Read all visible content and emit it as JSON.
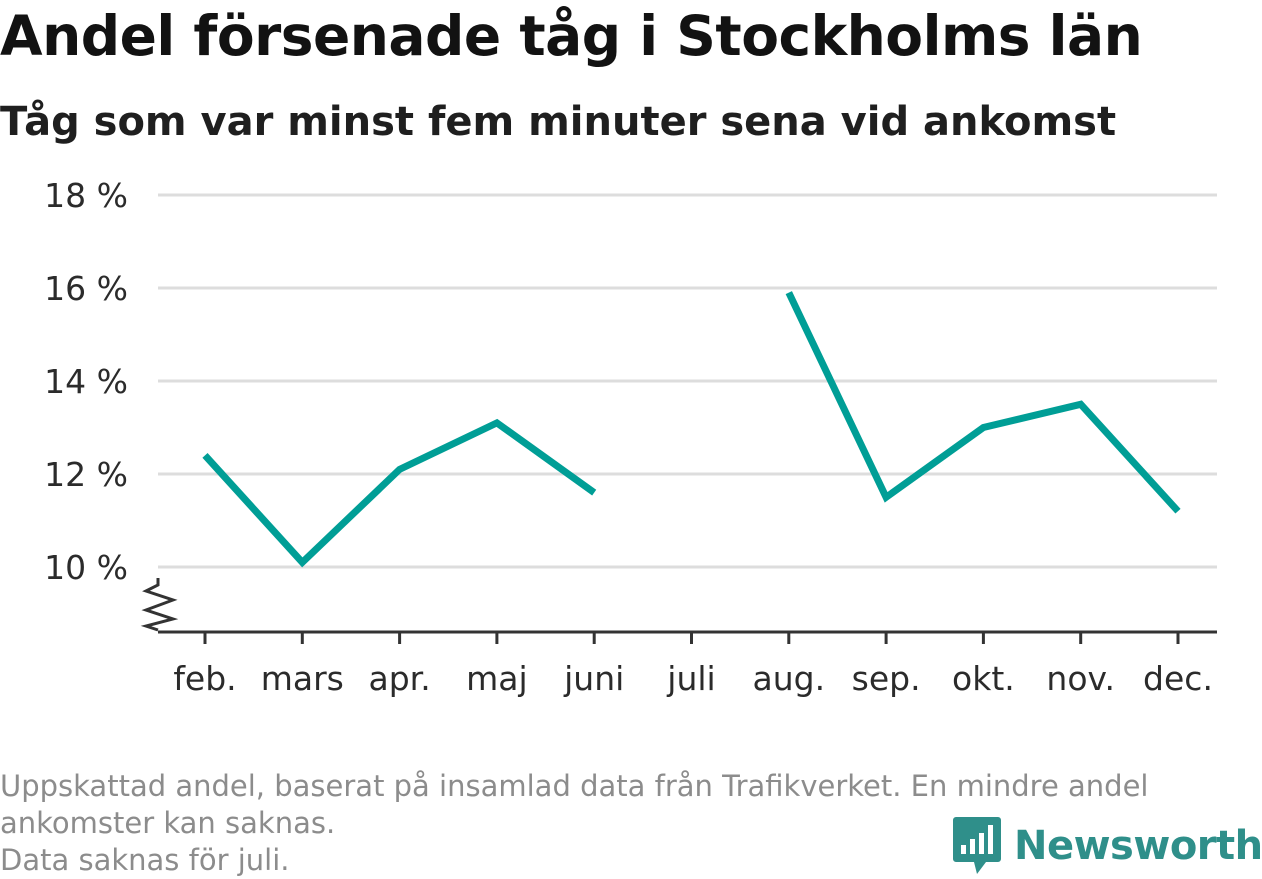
{
  "chart_data": {
    "type": "line",
    "title": "Andel försenade tåg i Stockholms län",
    "subtitle": "Tåg som var minst fem minuter sena vid ankomst",
    "categories": [
      "feb.",
      "mars",
      "apr.",
      "maj",
      "juni",
      "juli",
      "aug.",
      "sep.",
      "okt.",
      "nov.",
      "dec."
    ],
    "series": [
      {
        "values": [
          12.4,
          10.1,
          12.1,
          13.1,
          11.6,
          null,
          15.9,
          11.5,
          13.0,
          13.5,
          11.2
        ],
        "color": "#009e96"
      }
    ],
    "yticks": [
      10,
      12,
      14,
      16,
      18
    ],
    "ytick_suffix": " %",
    "ylim": [
      8.6,
      18
    ],
    "y_axis_break": true,
    "grid": true,
    "legend": "none",
    "xlabel": "",
    "ylabel": ""
  },
  "footer": {
    "note_line1": "Uppskattad andel, baserat på insamlad data från Trafikverket. En mindre andel",
    "note_line2": "ankomster kan saknas.",
    "note_line3": "Data saknas för juli."
  },
  "logo": {
    "text": "Newsworthy",
    "icon": "newsworthy-logo-icon",
    "color": "#2f8f8a"
  },
  "colors": {
    "line": "#009e96",
    "grid": "#dddddd",
    "axis": "#333333",
    "footer_text": "#8c8c8c"
  }
}
